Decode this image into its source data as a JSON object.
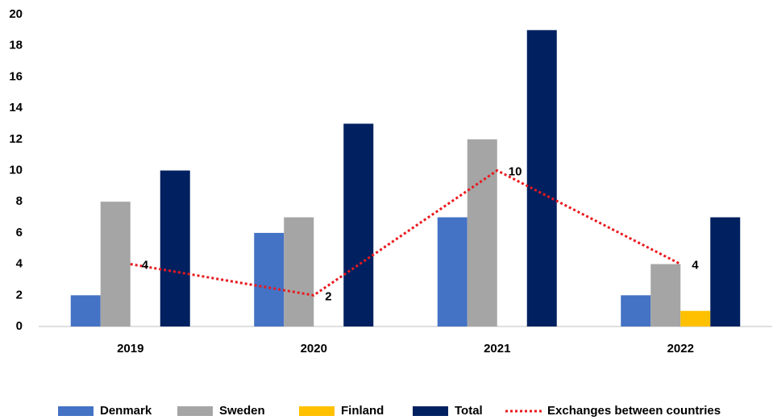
{
  "chart_data": {
    "type": "bar",
    "categories": [
      "2019",
      "2020",
      "2021",
      "2022"
    ],
    "series": [
      {
        "name": "Denmark",
        "color": "#4472c4",
        "values": [
          2,
          6,
          7,
          2
        ]
      },
      {
        "name": "Sweden",
        "color": "#a5a5a5",
        "values": [
          8,
          7,
          12,
          4
        ]
      },
      {
        "name": "Finland",
        "color": "#ffc000",
        "values": [
          0,
          0,
          0,
          1
        ]
      },
      {
        "name": "Total",
        "color": "#002060",
        "values": [
          10,
          13,
          19,
          7
        ]
      },
      {
        "name": "Exchanges between countries",
        "type": "line",
        "color": "#e8191e",
        "dashed": true,
        "values": [
          4,
          2,
          10,
          4
        ]
      }
    ],
    "ylim": [
      0,
      20
    ],
    "yticks": [
      0,
      2,
      4,
      6,
      8,
      10,
      12,
      14,
      16,
      18,
      20
    ],
    "grid": false,
    "legend": "bottom"
  }
}
